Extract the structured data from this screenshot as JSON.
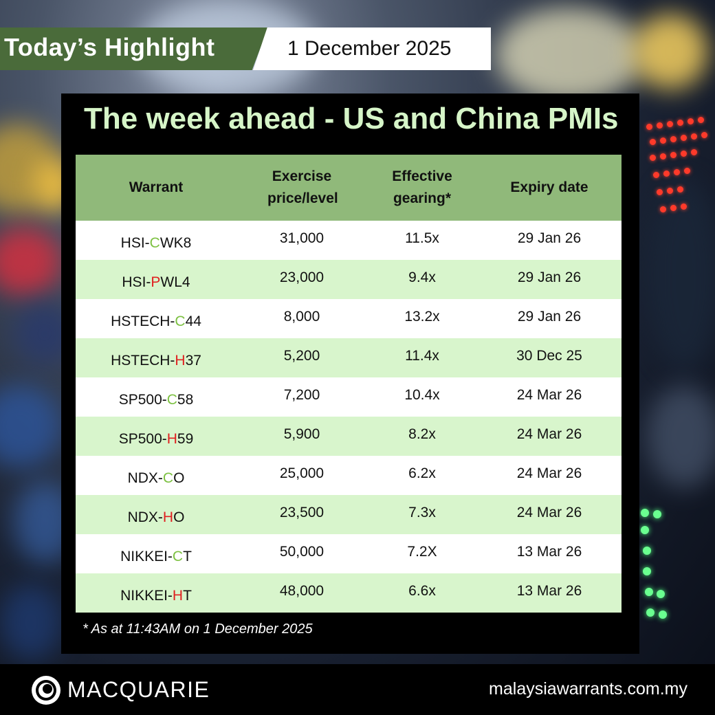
{
  "header": {
    "highlight": "Today’s Highlight",
    "date": "1 December 2025"
  },
  "panel": {
    "title": "The week ahead - US and China PMIs"
  },
  "table": {
    "headers": [
      "Warrant",
      "Exercise price/level",
      "Effective gearing*",
      "Expiry date"
    ],
    "rows": [
      {
        "prefix": "HSI-",
        "type": "C",
        "suffix": "WK8",
        "price": "31,000",
        "gearing": "11.5x",
        "expiry": "29 Jan 26"
      },
      {
        "prefix": "HSI-",
        "type": "P",
        "suffix": "WL4",
        "price": "23,000",
        "gearing": "9.4x",
        "expiry": "29 Jan 26"
      },
      {
        "prefix": "HSTECH-",
        "type": "C",
        "suffix": "44",
        "price": "8,000",
        "gearing": "13.2x",
        "expiry": "29 Jan 26"
      },
      {
        "prefix": "HSTECH-",
        "type": "H",
        "suffix": "37",
        "price": "5,200",
        "gearing": "11.4x",
        "expiry": "30 Dec 25"
      },
      {
        "prefix": "SP500-",
        "type": "C",
        "suffix": "58",
        "price": "7,200",
        "gearing": "10.4x",
        "expiry": "24 Mar 26"
      },
      {
        "prefix": "SP500-",
        "type": "H",
        "suffix": "59",
        "price": "5,900",
        "gearing": "8.2x",
        "expiry": "24 Mar 26"
      },
      {
        "prefix": "NDX-",
        "type": "C",
        "suffix": "O",
        "price": "25,000",
        "gearing": "6.2x",
        "expiry": "24 Mar 26"
      },
      {
        "prefix": "NDX-",
        "type": "H",
        "suffix": "O",
        "price": "23,500",
        "gearing": "7.3x",
        "expiry": "24 Mar 26"
      },
      {
        "prefix": "NIKKEI-",
        "type": "C",
        "suffix": "T",
        "price": "50,000",
        "gearing": "7.2X",
        "expiry": "13 Mar 26"
      },
      {
        "prefix": "NIKKEI-",
        "type": "H",
        "suffix": "T",
        "price": "48,000",
        "gearing": "6.6x",
        "expiry": "13 Mar 26"
      }
    ]
  },
  "note": "* As at 11:43AM on 1 December 2025",
  "footer": {
    "brand": "MACQUARIE",
    "site": "malaysiawarrants.com.my"
  },
  "colors": {
    "call": "#7dc142",
    "put": "#e02020",
    "header_green": "#4a6b3a",
    "table_header": "#90b97a",
    "row_alt": "#d8f5cc",
    "title_text": "#d6f5c8"
  }
}
